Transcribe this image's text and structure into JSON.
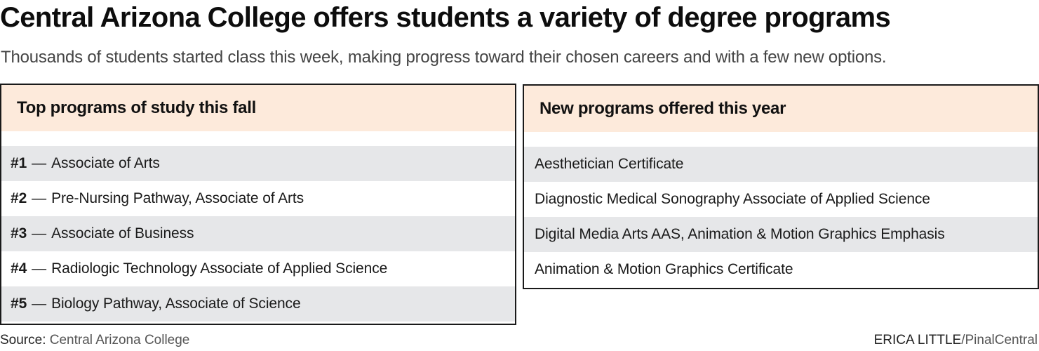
{
  "header": {
    "title": "Central Arizona College offers students a variety of degree programs",
    "subtitle": "Thousands of students started class this week, making progress toward their chosen careers and with a few new options."
  },
  "top_programs": {
    "heading": "Top programs of study this fall",
    "separator": "—",
    "items": [
      {
        "rank": "#1",
        "name": "Associate of Arts"
      },
      {
        "rank": "#2",
        "name": "Pre-Nursing Pathway, Associate of Arts"
      },
      {
        "rank": "#3",
        "name": "Associate of Business"
      },
      {
        "rank": "#4",
        "name": "Radiologic Technology Associate of Applied Science"
      },
      {
        "rank": "#5",
        "name": "Biology Pathway, Associate of Science"
      }
    ]
  },
  "new_programs": {
    "heading": "New programs offered this year",
    "items": [
      {
        "name": "Aesthetician Certificate"
      },
      {
        "name": "Diagnostic Medical Sonography Associate of Applied Science"
      },
      {
        "name": "Digital Media Arts AAS, Animation & Motion Graphics Emphasis"
      },
      {
        "name": "Animation & Motion Graphics Certificate"
      }
    ]
  },
  "footer": {
    "source_label": "Source:",
    "source_value": "Central Arizona College",
    "credit_author": "ERICA LITTLE",
    "credit_org": "/PinalCentral"
  },
  "colors": {
    "header_band": "#fdeadb",
    "row_shade": "#e6e7e9",
    "border": "#1a1a1a"
  }
}
